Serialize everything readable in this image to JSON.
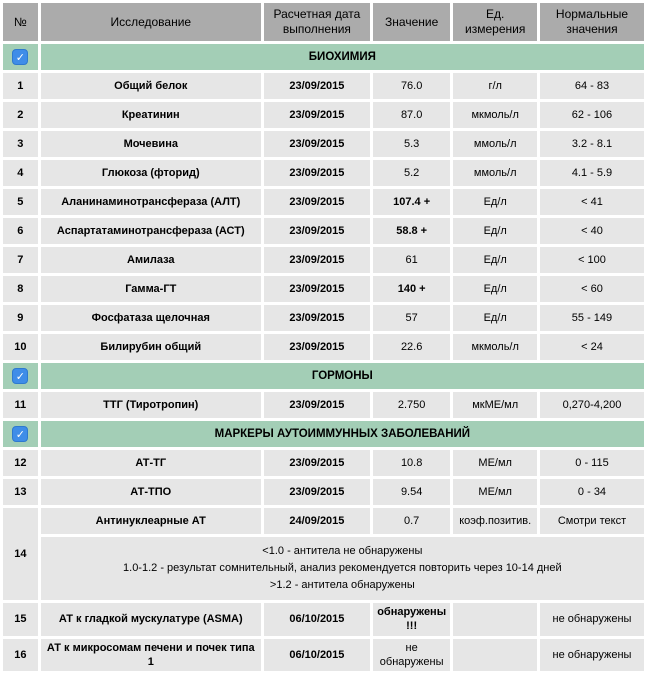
{
  "colors": {
    "header_bg": "#ababab",
    "row_bg": "#e6e6e6",
    "section_bg": "#a3ceb6",
    "checkbox_blue": "#3f8de8"
  },
  "checkbox_glyph": "✓",
  "table": {
    "columns": [
      {
        "label": "№"
      },
      {
        "label": "Исследование"
      },
      {
        "label": "Расчетная дата выполнения"
      },
      {
        "label": "Значение"
      },
      {
        "label": "Ед. измерения"
      },
      {
        "label": "Нормальные значения"
      }
    ],
    "sections": [
      {
        "title": "БИОХИМИЯ",
        "checked": true,
        "rows": [
          {
            "num": "1",
            "name": "Общий белок",
            "date": "23/09/2015",
            "value": "76.0",
            "value_bold": false,
            "unit": "г/л",
            "normal": "64 - 83"
          },
          {
            "num": "2",
            "name": "Креатинин",
            "date": "23/09/2015",
            "value": "87.0",
            "value_bold": false,
            "unit": "мкмоль/л",
            "normal": "62 - 106"
          },
          {
            "num": "3",
            "name": "Мочевина",
            "date": "23/09/2015",
            "value": "5.3",
            "value_bold": false,
            "unit": "ммоль/л",
            "normal": "3.2 - 8.1"
          },
          {
            "num": "4",
            "name": "Глюкоза (фторид)",
            "date": "23/09/2015",
            "value": "5.2",
            "value_bold": false,
            "unit": "ммоль/л",
            "normal": "4.1 - 5.9"
          },
          {
            "num": "5",
            "name": "Аланинаминотрансфераза (АЛТ)",
            "date": "23/09/2015",
            "value": "107.4 +",
            "value_bold": true,
            "unit": "Ед/л",
            "normal": "< 41"
          },
          {
            "num": "6",
            "name": "Аспартатаминотрансфераза (АСТ)",
            "date": "23/09/2015",
            "value": "58.8 +",
            "value_bold": true,
            "unit": "Ед/л",
            "normal": "< 40"
          },
          {
            "num": "7",
            "name": "Амилаза",
            "date": "23/09/2015",
            "value": "61",
            "value_bold": false,
            "unit": "Ед/л",
            "normal": "< 100"
          },
          {
            "num": "8",
            "name": "Гамма-ГТ",
            "date": "23/09/2015",
            "value": "140 +",
            "value_bold": true,
            "unit": "Ед/л",
            "normal": "< 60"
          },
          {
            "num": "9",
            "name": "Фосфатаза щелочная",
            "date": "23/09/2015",
            "value": "57",
            "value_bold": false,
            "unit": "Ед/л",
            "normal": "55 - 149"
          },
          {
            "num": "10",
            "name": "Билирубин общий",
            "date": "23/09/2015",
            "value": "22.6",
            "value_bold": false,
            "unit": "мкмоль/л",
            "normal": "< 24"
          }
        ]
      },
      {
        "title": "ГОРМОНЫ",
        "checked": true,
        "rows": [
          {
            "num": "11",
            "name": "ТТГ (Тиротропин)",
            "date": "23/09/2015",
            "value": "2.750",
            "value_bold": false,
            "unit": "мкМЕ/мл",
            "normal": "0,270-4,200"
          }
        ]
      },
      {
        "title": "МАРКЕРЫ АУТОИММУННЫХ ЗАБОЛЕВАНИЙ",
        "checked": true,
        "rows": [
          {
            "num": "12",
            "name": "АТ-ТГ",
            "date": "23/09/2015",
            "value": "10.8",
            "value_bold": false,
            "unit": "МЕ/мл",
            "normal": "0 - 115"
          },
          {
            "num": "13",
            "name": "АТ-ТПО",
            "date": "23/09/2015",
            "value": "9.54",
            "value_bold": false,
            "unit": "МЕ/мл",
            "normal": "0 - 34"
          },
          {
            "num": "14",
            "name": "Антинуклеарные АТ",
            "date": "24/09/2015",
            "value": "0.7",
            "value_bold": false,
            "unit": "коэф.позитив.",
            "normal": "Смотри текст",
            "note_lines": [
              "<1.0 - антитела не обнаружены",
              "1.0-1.2 - результат сомнительный, анализ рекомендуется повторить через 10-14 дней",
              ">1.2 - антитела обнаружены"
            ]
          },
          {
            "num": "15",
            "name": "АТ к гладкой мускулатуре (ASMA)",
            "date": "06/10/2015",
            "value": "обнаружены !!!",
            "value_bold": true,
            "unit": "",
            "normal": "не обнаружены"
          },
          {
            "num": "16",
            "name": "АТ к микросомам печени и почек типа 1",
            "date": "06/10/2015",
            "value": "не обнаружены",
            "value_bold": false,
            "unit": "",
            "normal": "не обнаружены"
          }
        ]
      }
    ]
  }
}
